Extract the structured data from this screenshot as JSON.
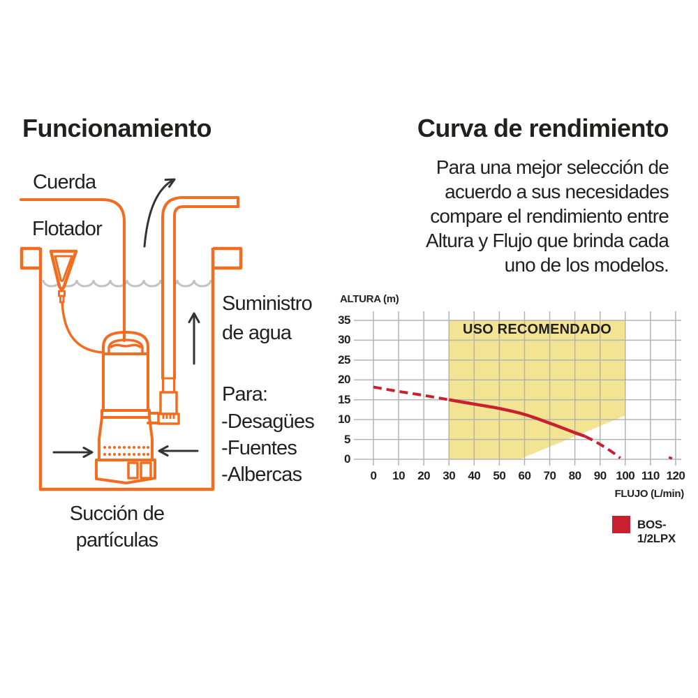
{
  "colors": {
    "orange": "#f36d21",
    "ink": "#221f1f",
    "water_gray": "#c3c3c3",
    "grid_gray": "#b3b3b3",
    "region_yellow": "#f2e492",
    "curve_red": "#c8202e"
  },
  "left_panel": {
    "title": "Funcionamiento",
    "labels": {
      "rope": "Cuerda",
      "float": "Flotador",
      "supply_line1": "Suministro",
      "supply_line2": "de agua",
      "uses_title": "Para:",
      "uses": [
        "-Desagües",
        "-Fuentes",
        "-Albercas"
      ],
      "suction_line1": "Succión de",
      "suction_line2": "partículas"
    }
  },
  "right_panel": {
    "title": "Curva de rendimiento",
    "description_lines": [
      "Para una mejor selección de",
      "acuerdo a sus necesidades",
      "compare el rendimiento entre",
      "Altura y Flujo que brinda cada",
      "uno de los modelos."
    ]
  },
  "chart_data": {
    "type": "line",
    "title": "",
    "xlabel": "FLUJO (L/min)",
    "ylabel": "ALTURA (m)",
    "xlim": [
      0,
      120
    ],
    "ylim": [
      0,
      35
    ],
    "grid": true,
    "x_ticks": [
      0,
      10,
      20,
      30,
      40,
      50,
      60,
      70,
      80,
      90,
      100,
      110,
      120
    ],
    "y_ticks": [
      0,
      5,
      10,
      15,
      20,
      25,
      30,
      35
    ],
    "recommended_region": {
      "label": "USO RECOMENDADO",
      "color": "#f2e492",
      "points": [
        [
          30,
          35
        ],
        [
          100,
          35
        ],
        [
          100,
          11
        ],
        [
          58,
          0
        ],
        [
          30,
          0
        ]
      ]
    },
    "series": [
      {
        "name": "BOS-1/2LPX",
        "color": "#c8202e",
        "dashed_lead": [
          [
            0,
            18.2
          ],
          [
            10,
            17.1
          ],
          [
            20,
            16.1
          ],
          [
            30,
            15.0
          ]
        ],
        "solid": [
          [
            30,
            15.0
          ],
          [
            40,
            13.9
          ],
          [
            50,
            12.8
          ],
          [
            60,
            11.3
          ],
          [
            70,
            9.1
          ],
          [
            80,
            6.7
          ],
          [
            84,
            5.8
          ]
        ],
        "dashed_tail": [
          [
            84,
            5.8
          ],
          [
            88,
            4.5
          ],
          [
            92,
            3.0
          ],
          [
            96,
            1.3
          ],
          [
            98,
            0.3
          ]
        ],
        "extra_dash": [
          [
            117.3,
            0.5
          ],
          [
            118.6,
            0.2
          ]
        ]
      }
    ],
    "legend": [
      {
        "label": "BOS-1/2LPX",
        "color": "#c8202e"
      }
    ],
    "legend_position": "bottom-right"
  }
}
